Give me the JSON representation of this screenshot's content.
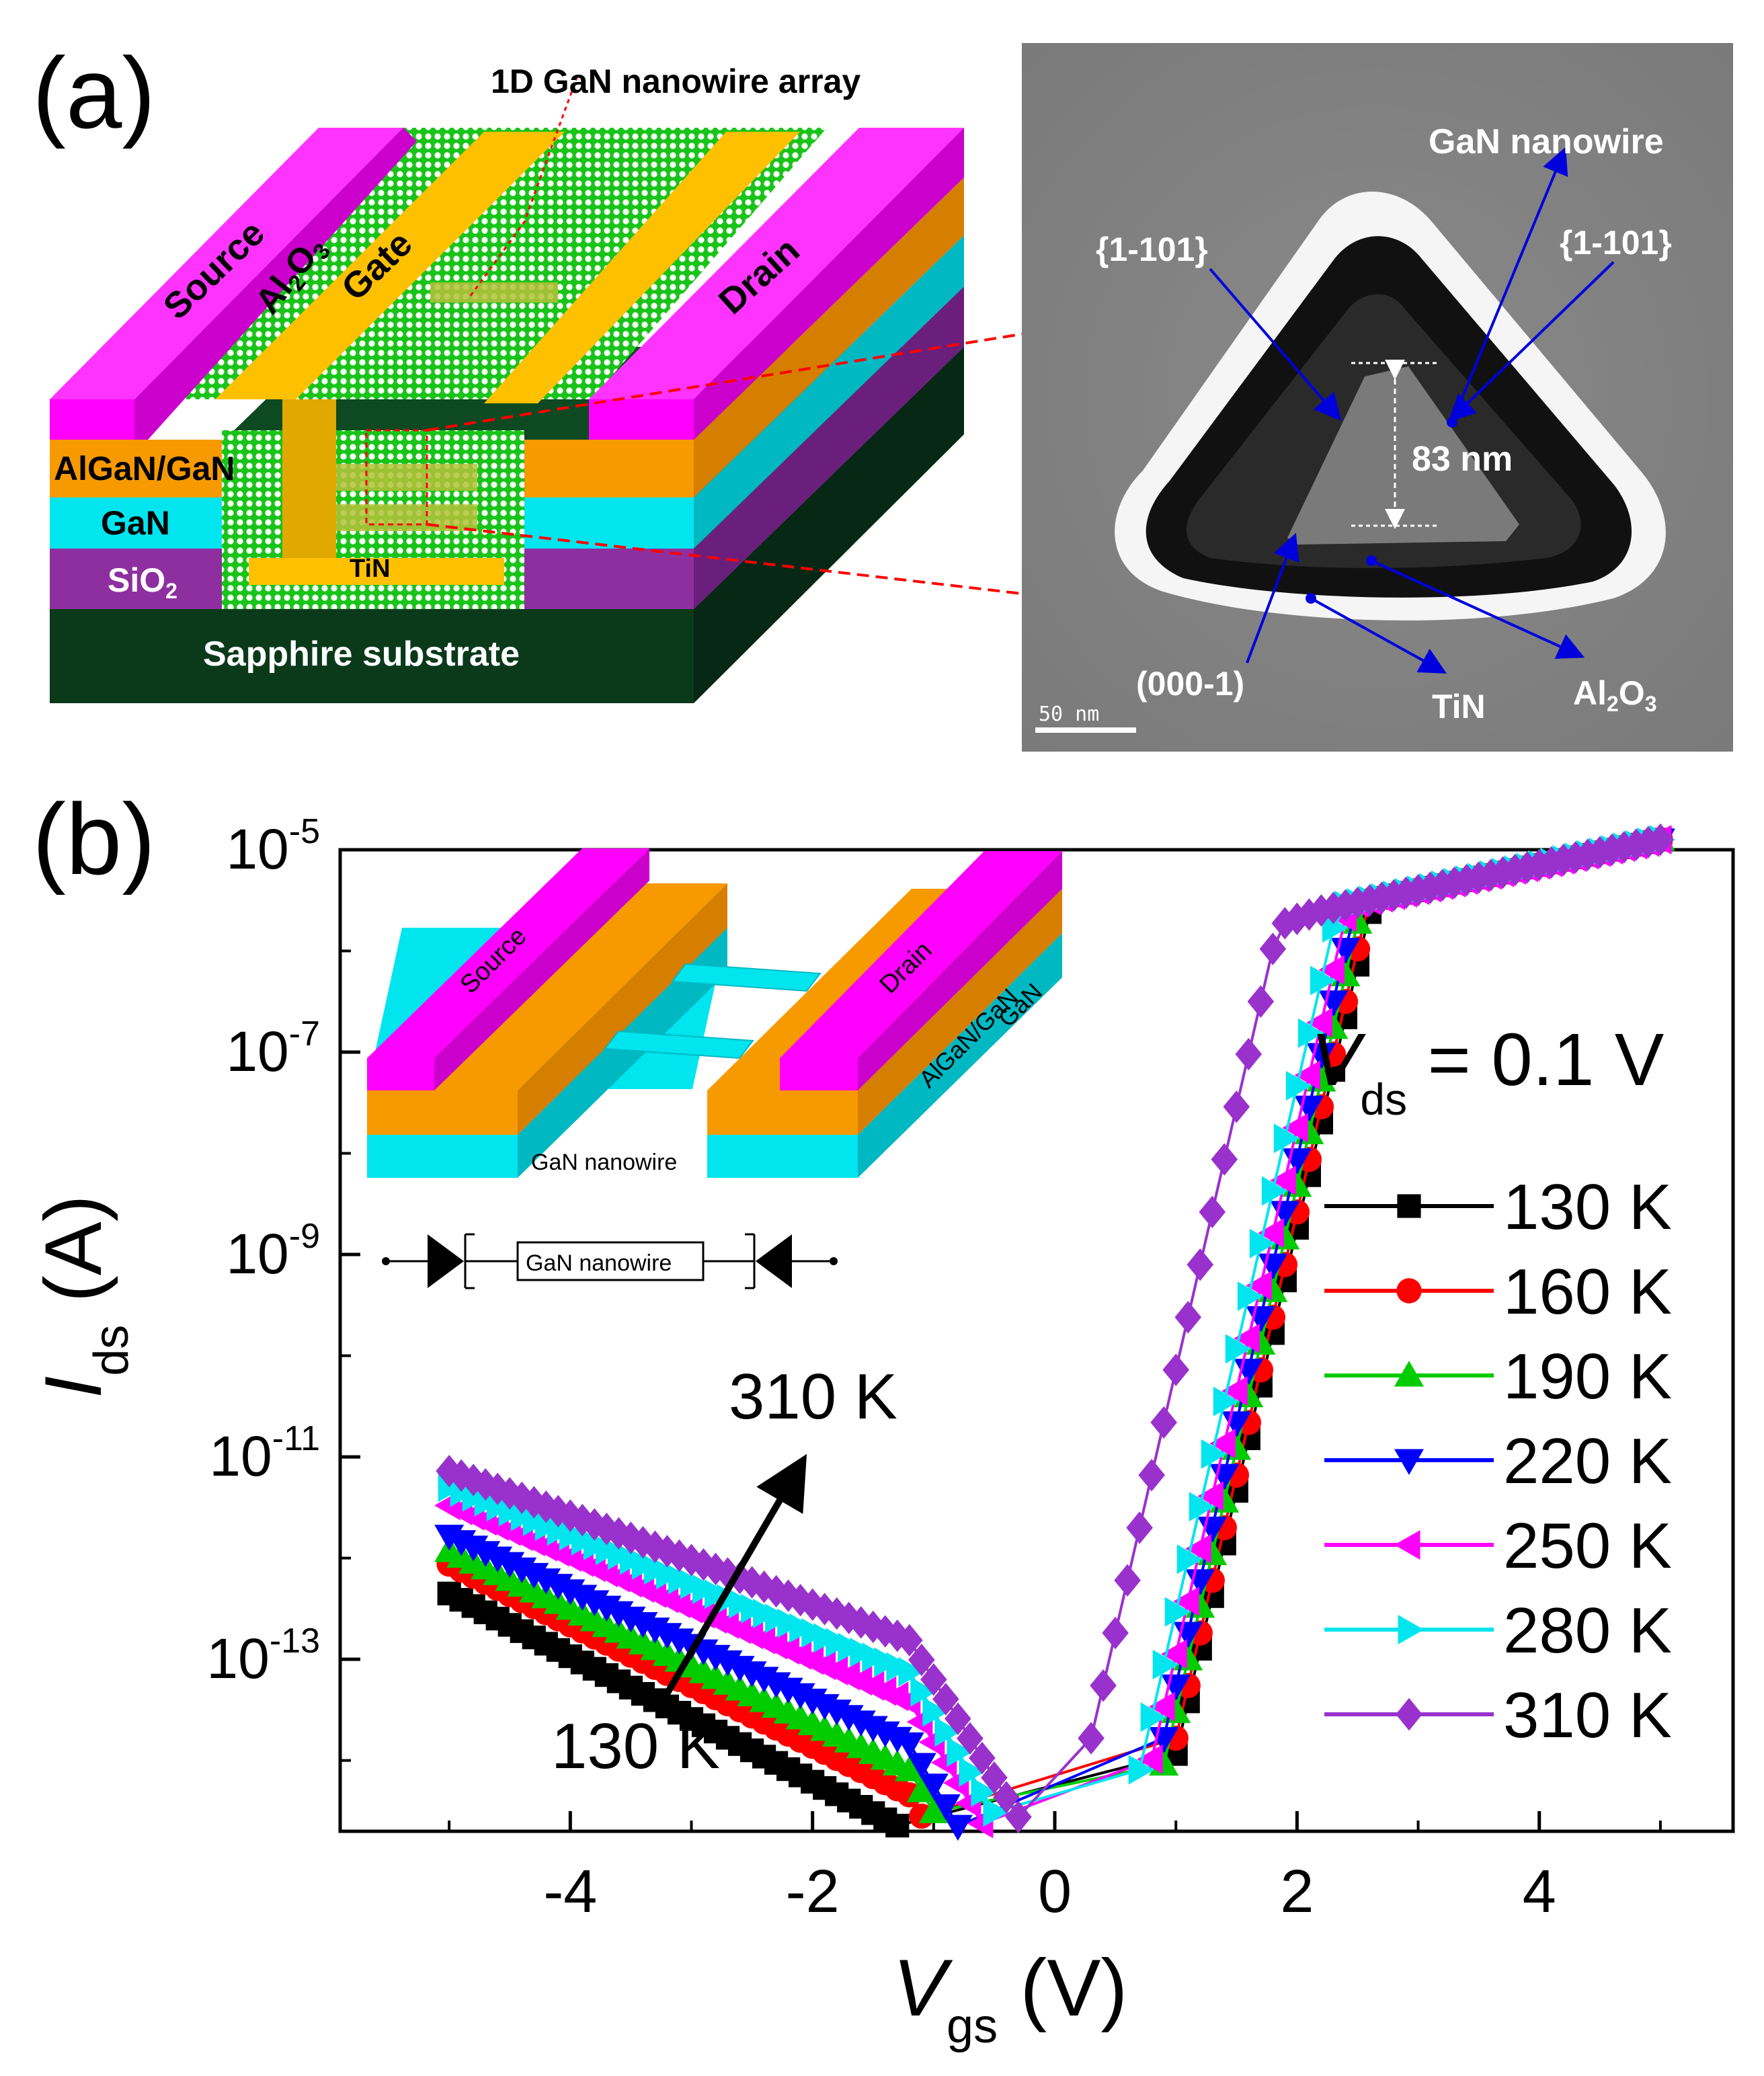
{
  "panel_a": {
    "label": "(a)",
    "schematic": {
      "callout": "1D GaN nanowire array",
      "source": "Source",
      "al2o3_main": "Al",
      "al2o3_sub": "2",
      "al2o3_tail": "O",
      "al2o3_sub2": "3",
      "gate": "Gate",
      "drain": "Drain",
      "algan_gan": "AlGaN/GaN",
      "gan": "GaN",
      "sio2_main": "SiO",
      "sio2_sub": "2",
      "tin": "TiN",
      "substrate": "Sapphire substrate"
    },
    "tem": {
      "gan_nanowire": "GaN nanowire",
      "facet_left": "{1-101}",
      "facet_right": "{1-101}",
      "dimension": "83 nm",
      "bottom_facet": "(000-1)",
      "tin": "TiN",
      "al2o3_main": "Al",
      "al2o3_sub": "2",
      "al2o3_tail": "O",
      "al2o3_sub2": "3",
      "scale_bar": "50 nm"
    }
  },
  "panel_b": {
    "label": "(b)",
    "inset": {
      "source": "Source",
      "drain": "Drain",
      "algan_gan": "AlGaN/GaN",
      "gan": "GaN",
      "gan_nanowire": "GaN nanowire",
      "circuit_box": "GaN nanowire"
    },
    "annotation": {
      "vds_symbol": "V",
      "vds_sub": "ds",
      "vds_value": " = 0.1 V",
      "arrow_top": "310 K",
      "arrow_bottom": "130 K"
    }
  },
  "chart_data": {
    "type": "scatter",
    "title": "",
    "xlabel": "V",
    "xlabel_sub": "gs",
    "xlabel_unit": " (V)",
    "ylabel": "I",
    "ylabel_sub": "ds",
    "ylabel_unit": " (A)",
    "xlim": [
      -5.9,
      5.6
    ],
    "ylim_log10": [
      -14.7,
      -5
    ],
    "x_ticks": [
      -4,
      -2,
      0,
      2,
      4
    ],
    "x_tick_labels": [
      "-4",
      "-2",
      "0",
      "2",
      "4"
    ],
    "y_ticks_log10": [
      -5,
      -7,
      -9,
      -11,
      -13
    ],
    "y_tick_base": [
      "10",
      "10",
      "10",
      "10",
      "10"
    ],
    "y_tick_exp": [
      "-5",
      "-7",
      "-9",
      "-11",
      "-13"
    ],
    "legend_position": "right",
    "series": [
      {
        "name": "130 K",
        "color": "#000000",
        "marker": "square",
        "vth": 0.93,
        "floor": -12.35,
        "slope_off": 0.62
      },
      {
        "name": "160 K",
        "color": "#ff0000",
        "marker": "circle",
        "vth": 0.9,
        "floor": -12.06,
        "slope_off": 0.6
      },
      {
        "name": "190 K",
        "color": "#00cc00",
        "marker": "triangle-up",
        "vth": 0.85,
        "floor": -11.93,
        "slope_off": 0.57
      },
      {
        "name": "220 K",
        "color": "#0000ff",
        "marker": "triangle-down",
        "vth": 0.8,
        "floor": -11.78,
        "slope_off": 0.54
      },
      {
        "name": "250 K",
        "color": "#ff00ff",
        "marker": "triangle-left",
        "vth": 0.74,
        "floor": -11.48,
        "slope_off": 0.51
      },
      {
        "name": "280 K",
        "color": "#00e5ee",
        "marker": "triangle-right",
        "vth": 0.66,
        "floor": -11.3,
        "slope_off": 0.48
      },
      {
        "name": "310 K",
        "color": "#9932cc",
        "marker": "diamond",
        "vth": 0.2,
        "floor": -11.14,
        "slope_off": 0.44
      }
    ]
  },
  "colors": {
    "source": "#ff00ff",
    "gate": "#ffc000",
    "algan": "#f79a00",
    "gan": "#00e5ee",
    "sio2": "#8e2fa0",
    "substrate": "#0a3a1a",
    "oxide": "#19c419",
    "callout": "#ff0000",
    "tem_arrow": "#0000dd"
  }
}
